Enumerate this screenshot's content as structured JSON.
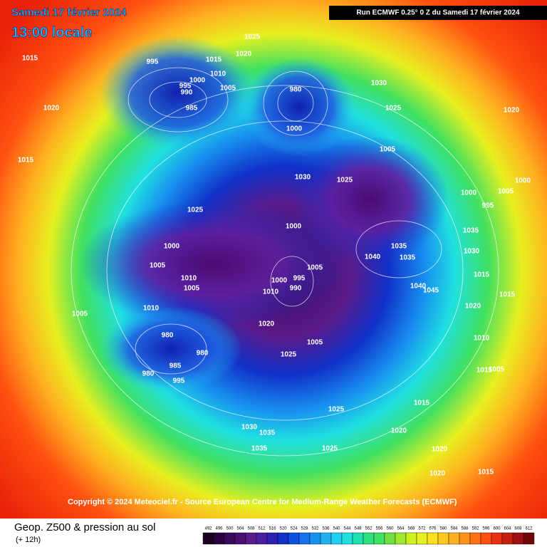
{
  "header": {
    "date": "Samedi 17 février 2024",
    "time": "13:00 locale",
    "run": "Run ECMWF 0.25° 0 Z du Samedi 17 février 2024"
  },
  "map": {
    "copyright": "Copyright © 2024 Meteociel.fr - Source European Centre for Medium-Range Weather Forecasts (ECMWF)",
    "isobar_labels": [
      1015,
      1020,
      1015,
      995,
      1000,
      995,
      990,
      985,
      1005,
      1010,
      1015,
      1020,
      1025,
      980,
      1000,
      1030,
      1025,
      1020,
      1005,
      1030,
      1025,
      1000,
      1005,
      1000,
      1025,
      1000,
      1000,
      1005,
      1010,
      1005,
      1010,
      1005,
      1035,
      1040,
      1035,
      995,
      990,
      1000,
      1010,
      1005,
      980,
      980,
      985,
      980,
      995,
      1020,
      1025,
      1005,
      1025,
      1030,
      1035,
      1035,
      1025,
      1020,
      1020,
      1020,
      1015,
      1015,
      1015,
      1005,
      1010,
      1015,
      1020,
      1015,
      1040,
      1045,
      1030,
      1035,
      995
    ]
  },
  "footer": {
    "title": "Geop. Z500 & pression au sol",
    "subtitle": "(+ 12h)",
    "scale_ticks": [
      492,
      496,
      500,
      504,
      508,
      512,
      516,
      520,
      524,
      528,
      532,
      536,
      540,
      544,
      548,
      552,
      556,
      560,
      564,
      568,
      572,
      576,
      580,
      584,
      588,
      592,
      596,
      600,
      604,
      608,
      612
    ]
  }
}
